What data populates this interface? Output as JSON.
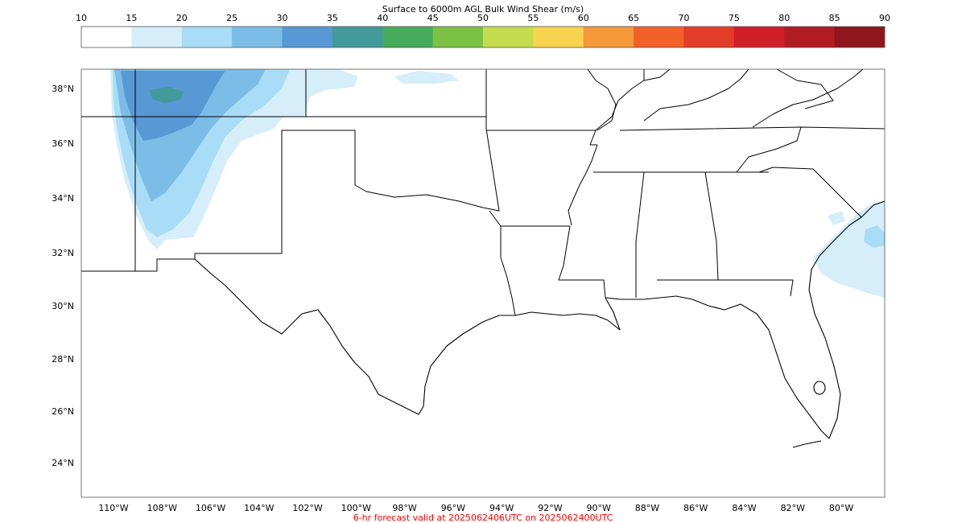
{
  "colorbar": {
    "title": "Surface to 6000m AGL Bulk Wind Shear (m/s)",
    "ticks": [
      "10",
      "15",
      "20",
      "25",
      "30",
      "35",
      "40",
      "45",
      "50",
      "55",
      "60",
      "65",
      "70",
      "75",
      "80",
      "85",
      "90"
    ],
    "colors": [
      "#ffffff",
      "#d5eefa",
      "#a9dcf6",
      "#7bbde6",
      "#5898d4",
      "#439a9a",
      "#46ab5b",
      "#7bc143",
      "#c4dc4e",
      "#f8d34d",
      "#f5993a",
      "#f26129",
      "#e23d28",
      "#d11f2a",
      "#b11b22",
      "#8e161c"
    ]
  },
  "map": {
    "lat_labels": [
      "38°N",
      "36°N",
      "34°N",
      "32°N",
      "30°N",
      "28°N",
      "26°N",
      "24°N"
    ],
    "lon_labels": [
      "110°W",
      "108°W",
      "106°W",
      "104°W",
      "102°W",
      "100°W",
      "98°W",
      "96°W",
      "94°W",
      "92°W",
      "90°W",
      "88°W",
      "86°W",
      "84°W",
      "82°W",
      "80°W"
    ],
    "shear_fill_colors": {
      "light": "#d5eefa",
      "mid": "#a9dcf6",
      "high": "#7bbde6",
      "max": "#5898d4",
      "peak": "#439a9a"
    }
  },
  "footer": {
    "forecast_text": "6-hr forecast valid at 2025062406UTC on 2025062400UTC",
    "color": "#ff0000"
  }
}
